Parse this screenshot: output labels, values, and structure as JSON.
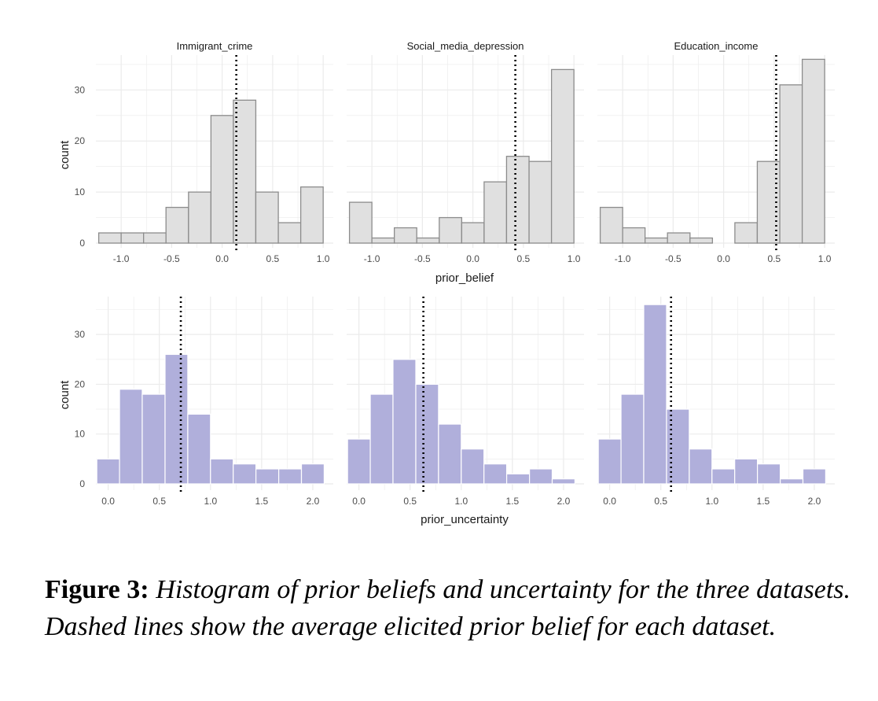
{
  "chart_data": [
    {
      "type": "bar",
      "title": "Immigrant_crime",
      "xlabel": "prior_belief",
      "ylabel": "count",
      "xlim": [
        -1.25,
        1.1
      ],
      "ylim": [
        0,
        37
      ],
      "bin_width": 0.222,
      "bins": [
        {
          "x0": -1.222,
          "x1": -1.0,
          "count": 2
        },
        {
          "x0": -1.0,
          "x1": -0.778,
          "count": 2
        },
        {
          "x0": -0.778,
          "x1": -0.556,
          "count": 2
        },
        {
          "x0": -0.556,
          "x1": -0.333,
          "count": 7
        },
        {
          "x0": -0.333,
          "x1": -0.111,
          "count": 10
        },
        {
          "x0": -0.111,
          "x1": 0.111,
          "count": 25
        },
        {
          "x0": 0.111,
          "x1": 0.333,
          "count": 28
        },
        {
          "x0": 0.333,
          "x1": 0.556,
          "count": 10
        },
        {
          "x0": 0.556,
          "x1": 0.778,
          "count": 4
        },
        {
          "x0": 0.778,
          "x1": 1.0,
          "count": 11
        }
      ],
      "mean_line": 0.14,
      "xticks": [
        "-1.0",
        "-0.5",
        "0.0",
        "0.5",
        "1.0"
      ],
      "yticks": [
        "0",
        "10",
        "20",
        "30"
      ]
    },
    {
      "type": "bar",
      "title": "Social_media_depression",
      "xlabel": "prior_belief",
      "ylabel": "count",
      "xlim": [
        -1.25,
        1.1
      ],
      "ylim": [
        0,
        37
      ],
      "bins": [
        {
          "x0": -1.222,
          "x1": -1.0,
          "count": 8
        },
        {
          "x0": -1.0,
          "x1": -0.778,
          "count": 1
        },
        {
          "x0": -0.778,
          "x1": -0.556,
          "count": 3
        },
        {
          "x0": -0.556,
          "x1": -0.333,
          "count": 1
        },
        {
          "x0": -0.333,
          "x1": -0.111,
          "count": 5
        },
        {
          "x0": -0.111,
          "x1": 0.111,
          "count": 4
        },
        {
          "x0": 0.111,
          "x1": 0.333,
          "count": 12
        },
        {
          "x0": 0.333,
          "x1": 0.556,
          "count": 17
        },
        {
          "x0": 0.556,
          "x1": 0.778,
          "count": 16
        },
        {
          "x0": 0.778,
          "x1": 1.0,
          "count": 34
        }
      ],
      "mean_line": 0.42,
      "xticks": [
        "-1.0",
        "-0.5",
        "0.0",
        "0.5",
        "1.0"
      ],
      "yticks": []
    },
    {
      "type": "bar",
      "title": "Education_income",
      "xlabel": "prior_belief",
      "ylabel": "count",
      "xlim": [
        -1.25,
        1.1
      ],
      "ylim": [
        0,
        37
      ],
      "bins": [
        {
          "x0": -1.222,
          "x1": -1.0,
          "count": 7
        },
        {
          "x0": -1.0,
          "x1": -0.778,
          "count": 3
        },
        {
          "x0": -0.778,
          "x1": -0.556,
          "count": 1
        },
        {
          "x0": -0.556,
          "x1": -0.333,
          "count": 2
        },
        {
          "x0": -0.333,
          "x1": -0.111,
          "count": 1
        },
        {
          "x0": -0.111,
          "x1": 0.111,
          "count": 0
        },
        {
          "x0": 0.111,
          "x1": 0.333,
          "count": 4
        },
        {
          "x0": 0.333,
          "x1": 0.556,
          "count": 16
        },
        {
          "x0": 0.556,
          "x1": 0.778,
          "count": 31
        },
        {
          "x0": 0.778,
          "x1": 1.0,
          "count": 36
        }
      ],
      "mean_line": 0.52,
      "xticks": [
        "-1.0",
        "-0.5",
        "0.0",
        "0.5",
        "1.0"
      ],
      "yticks": []
    },
    {
      "type": "bar",
      "title": "Immigrant_crime",
      "xlabel": "prior_uncertainty",
      "ylabel": "count",
      "xlim": [
        -0.12,
        2.2
      ],
      "ylim": [
        0,
        38
      ],
      "bins": [
        {
          "x0": -0.111,
          "x1": 0.111,
          "count": 5
        },
        {
          "x0": 0.111,
          "x1": 0.333,
          "count": 19
        },
        {
          "x0": 0.333,
          "x1": 0.556,
          "count": 18
        },
        {
          "x0": 0.556,
          "x1": 0.778,
          "count": 26
        },
        {
          "x0": 0.778,
          "x1": 1.0,
          "count": 14
        },
        {
          "x0": 1.0,
          "x1": 1.222,
          "count": 5
        },
        {
          "x0": 1.222,
          "x1": 1.444,
          "count": 4
        },
        {
          "x0": 1.444,
          "x1": 1.667,
          "count": 3
        },
        {
          "x0": 1.667,
          "x1": 1.889,
          "count": 3
        },
        {
          "x0": 1.889,
          "x1": 2.111,
          "count": 4
        }
      ],
      "mean_line": 0.71,
      "xticks": [
        "0.0",
        "0.5",
        "1.0",
        "1.5",
        "2.0"
      ],
      "yticks": [
        "0",
        "10",
        "20",
        "30"
      ]
    },
    {
      "type": "bar",
      "title": "Social_media_depression",
      "xlabel": "prior_uncertainty",
      "ylabel": "count",
      "xlim": [
        -0.12,
        2.2
      ],
      "ylim": [
        0,
        38
      ],
      "bins": [
        {
          "x0": -0.111,
          "x1": 0.111,
          "count": 9
        },
        {
          "x0": 0.111,
          "x1": 0.333,
          "count": 18
        },
        {
          "x0": 0.333,
          "x1": 0.556,
          "count": 25
        },
        {
          "x0": 0.556,
          "x1": 0.778,
          "count": 20
        },
        {
          "x0": 0.778,
          "x1": 1.0,
          "count": 12
        },
        {
          "x0": 1.0,
          "x1": 1.222,
          "count": 7
        },
        {
          "x0": 1.222,
          "x1": 1.444,
          "count": 4
        },
        {
          "x0": 1.444,
          "x1": 1.667,
          "count": 2
        },
        {
          "x0": 1.667,
          "x1": 1.889,
          "count": 3
        },
        {
          "x0": 1.889,
          "x1": 2.111,
          "count": 1
        }
      ],
      "mean_line": 0.63,
      "xticks": [
        "0.0",
        "0.5",
        "1.0",
        "1.5",
        "2.0"
      ],
      "yticks": []
    },
    {
      "type": "bar",
      "title": "Education_income",
      "xlabel": "prior_uncertainty",
      "ylabel": "count",
      "xlim": [
        -0.12,
        2.2
      ],
      "ylim": [
        0,
        38
      ],
      "bins": [
        {
          "x0": -0.111,
          "x1": 0.111,
          "count": 9
        },
        {
          "x0": 0.111,
          "x1": 0.333,
          "count": 18
        },
        {
          "x0": 0.333,
          "x1": 0.556,
          "count": 36
        },
        {
          "x0": 0.556,
          "x1": 0.778,
          "count": 15
        },
        {
          "x0": 0.778,
          "x1": 1.0,
          "count": 7
        },
        {
          "x0": 1.0,
          "x1": 1.222,
          "count": 3
        },
        {
          "x0": 1.222,
          "x1": 1.444,
          "count": 5
        },
        {
          "x0": 1.444,
          "x1": 1.667,
          "count": 4
        },
        {
          "x0": 1.667,
          "x1": 1.889,
          "count": 1
        },
        {
          "x0": 1.889,
          "x1": 2.111,
          "count": 3
        }
      ],
      "mean_line": 0.6,
      "xticks": [
        "0.0",
        "0.5",
        "1.0",
        "1.5",
        "2.0"
      ],
      "yticks": []
    }
  ],
  "colors": {
    "belief_fill": "#e0e0e0",
    "belief_stroke": "#8c8c8c",
    "uncertainty_fill": "#b0afdb",
    "uncertainty_stroke": "#ffffff",
    "grid": "#ebebeb",
    "mean_line": "#000000"
  },
  "labels": {
    "top_xlabel": "prior_belief",
    "bottom_xlabel": "prior_uncertainty",
    "top_ylabel": "count",
    "bottom_ylabel": "count"
  },
  "caption": {
    "label": "Figure 3:",
    "text": "Histogram of prior beliefs and uncertainty for the three datasets. Dashed lines show the average elicited prior belief for each dataset."
  }
}
